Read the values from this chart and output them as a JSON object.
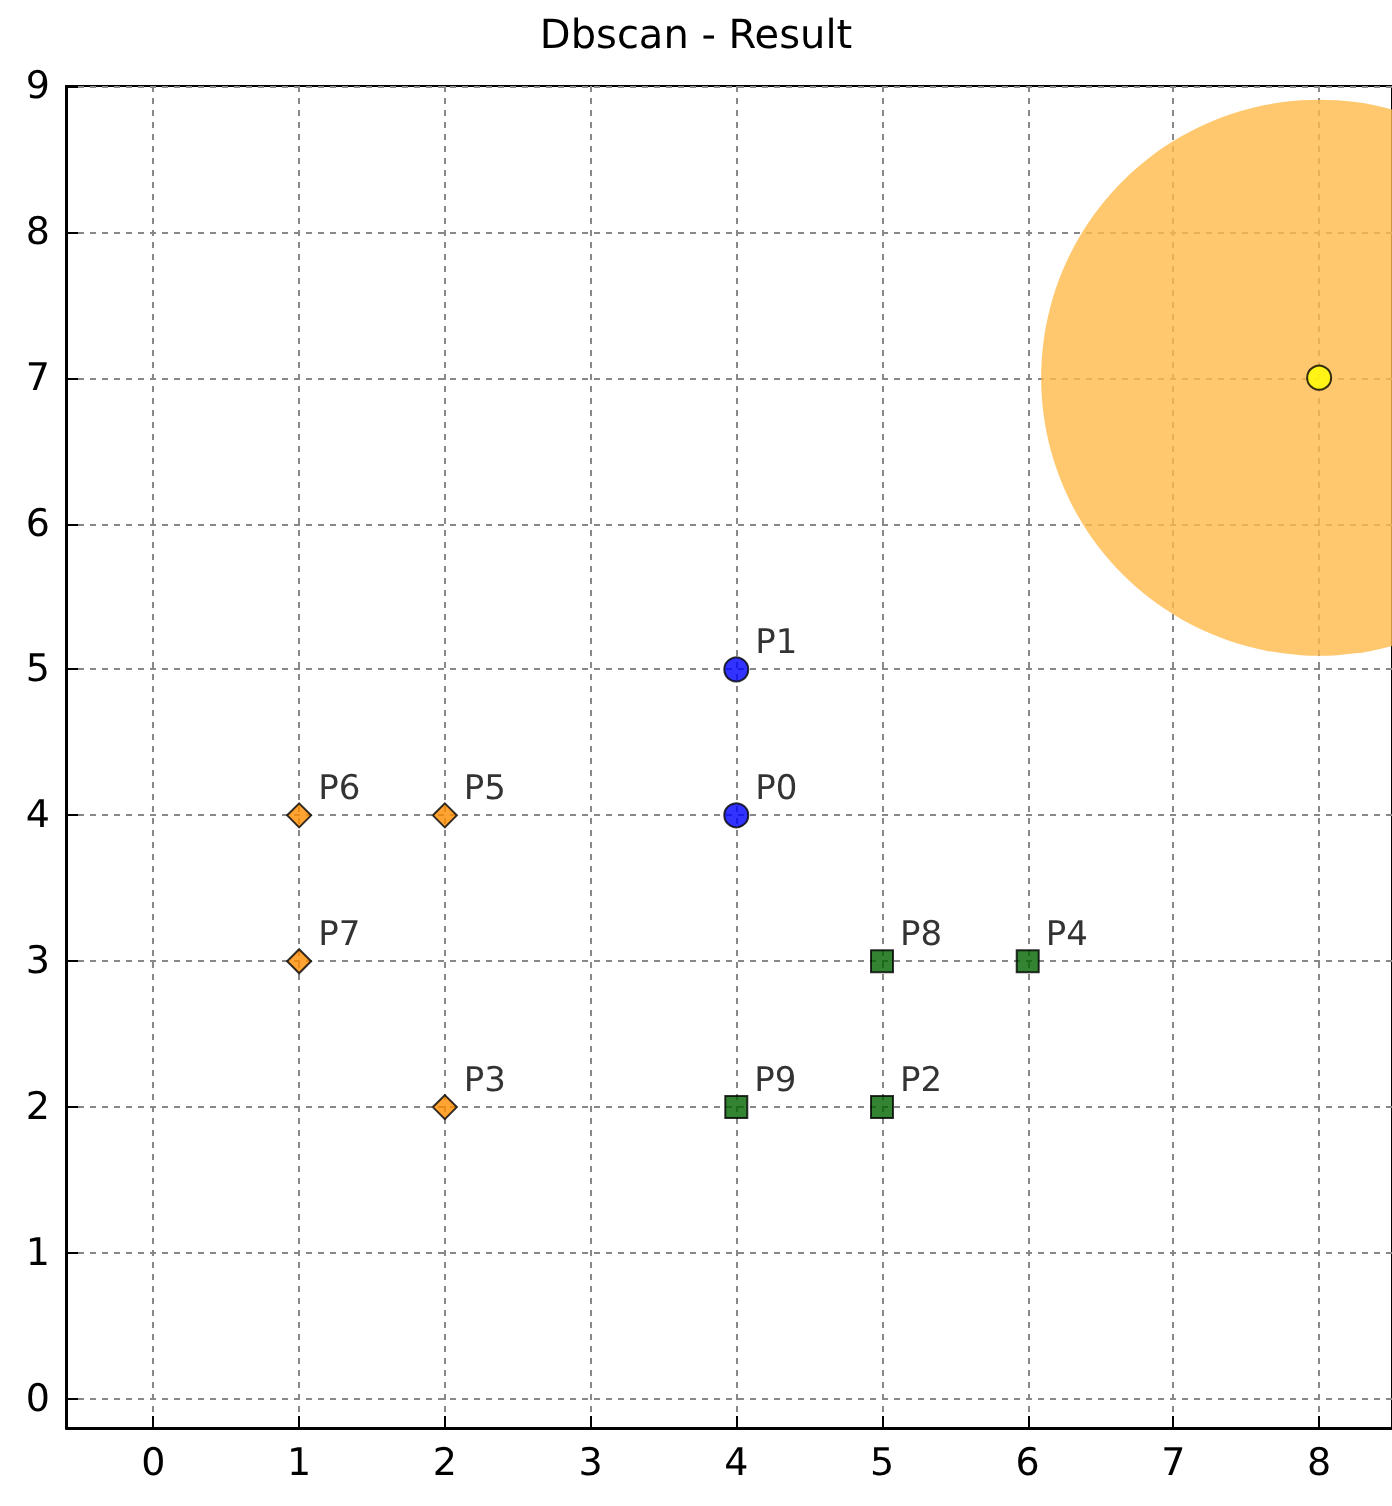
{
  "chart_data": {
    "type": "scatter",
    "title": "Dbscan - Result",
    "xlim": [
      -0.6,
      8.5
    ],
    "ylim": [
      -0.2,
      9
    ],
    "xticks": [
      0,
      1,
      2,
      3,
      4,
      5,
      6,
      7,
      8
    ],
    "yticks": [
      0,
      1,
      2,
      3,
      4,
      5,
      6,
      7,
      8,
      9
    ],
    "grid": true,
    "series": [
      {
        "type": "bubble",
        "x": [
          8
        ],
        "values": [
          7
        ],
        "sizes": [
          1
        ],
        "color": "#ffba4a"
      },
      {
        "x": [
          8
        ],
        "values": [
          7
        ],
        "color": "#ffff00",
        "marker": "circle"
      },
      {
        "x": [
          4,
          4
        ],
        "values": [
          5,
          4
        ],
        "color": "#0000ff",
        "marker": "circle",
        "value_labels": [
          "P1",
          "P0"
        ]
      },
      {
        "x": [
          1,
          2,
          1,
          2
        ],
        "values": [
          4,
          4,
          3,
          2
        ],
        "color": "#ff8c00",
        "marker": "diamond",
        "value_labels": [
          "P6",
          "P5",
          "P7",
          "P3"
        ]
      },
      {
        "x": [
          5,
          6,
          4,
          5
        ],
        "values": [
          3,
          3,
          2,
          2
        ],
        "color": "#006400",
        "marker": "square",
        "value_labels": [
          "P8",
          "P4",
          "P9",
          "P2"
        ]
      }
    ]
  }
}
